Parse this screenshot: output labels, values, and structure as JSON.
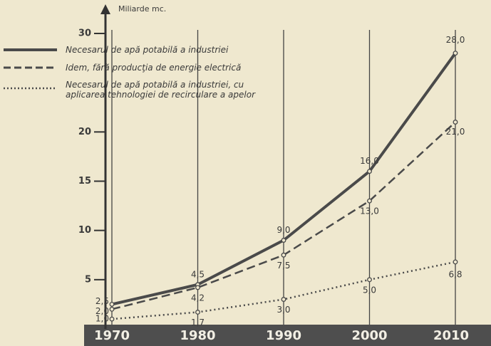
{
  "chart_data": {
    "type": "line",
    "y_axis_label": "Miliarde mc.",
    "categories": [
      "1970",
      "1980",
      "1990",
      "2000",
      "2010"
    ],
    "ylim": [
      0,
      30
    ],
    "yticks": [
      5,
      10,
      15,
      20,
      30
    ],
    "grid": true,
    "series": [
      {
        "name": "Necesarul de apă potabilă a industriei",
        "color": "#4a4a4a",
        "style": "solid",
        "values": [
          2.5,
          4.5,
          9.0,
          16.0,
          28.0
        ],
        "value_labels": [
          "2,5",
          "4,5",
          "9,0",
          "16,0",
          "28,0"
        ]
      },
      {
        "name": "Idem, fără producţia de energie electrică",
        "color": "#4a4a4a",
        "style": "dashed",
        "values": [
          2.0,
          4.2,
          7.5,
          13.0,
          21.0
        ],
        "value_labels": [
          "2,0",
          "4,2",
          "7,5",
          "13,0",
          "21,0"
        ]
      },
      {
        "name": "Necesarul de apă potabilă a industriei, cu aplicarea tehnologiei de recirculare a apelor",
        "color": "#4a4a4a",
        "style": "dotted",
        "values": [
          1.0,
          1.7,
          3.0,
          5.0,
          6.8
        ],
        "value_labels": [
          "1,0",
          "1,7",
          "3,0",
          "5,0",
          "6,8"
        ]
      }
    ]
  }
}
